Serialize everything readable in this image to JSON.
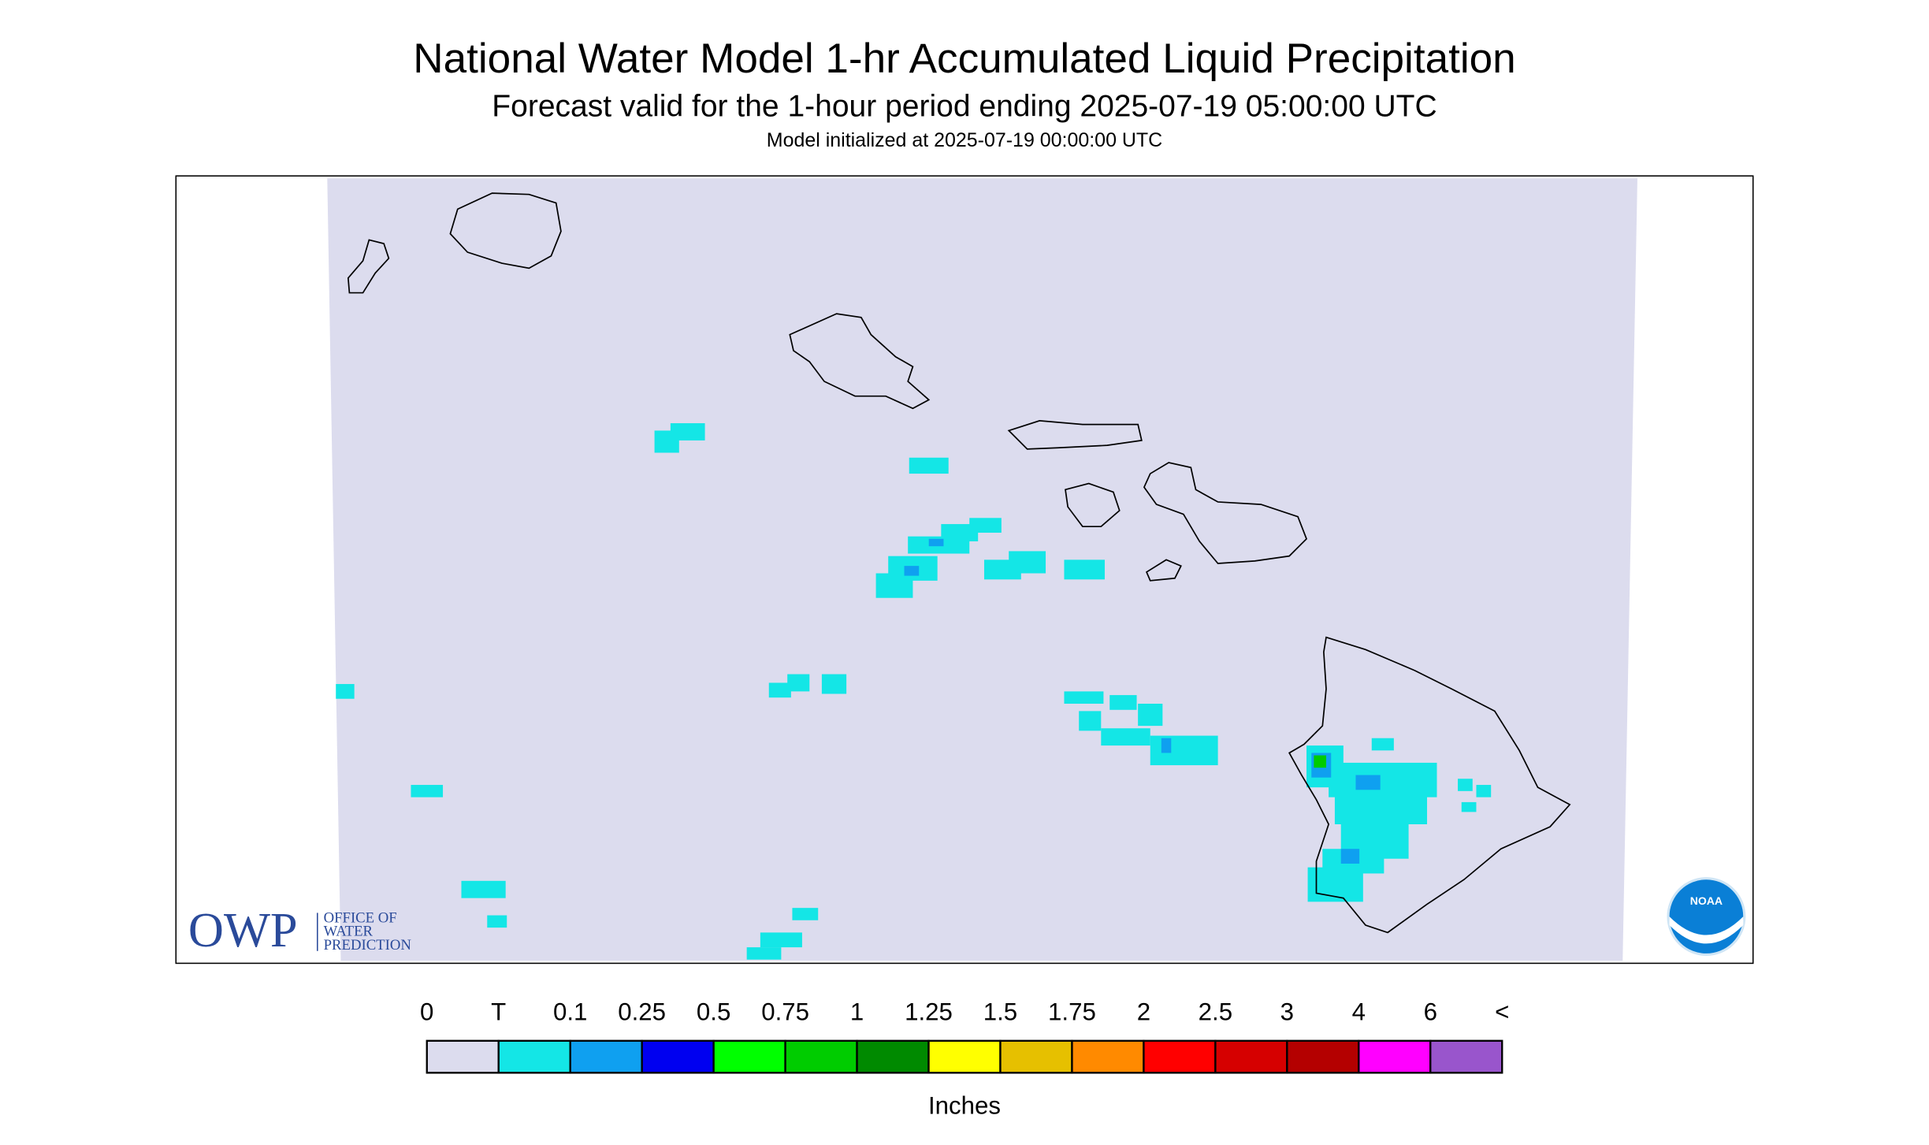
{
  "header": {
    "title": "National Water Model 1-hr Accumulated Liquid Precipitation",
    "subtitle": "Forecast valid for the 1-hour period ending 2025-07-19 05:00:00 UTC",
    "note": "Model initialized at 2025-07-19 00:00:00 UTC"
  },
  "legend": {
    "labels": [
      "0",
      "T",
      "0.1",
      "0.25",
      "0.5",
      "0.75",
      "1",
      "1.25",
      "1.5",
      "1.75",
      "2",
      "2.5",
      "3",
      "4",
      "6",
      "<"
    ],
    "colors": [
      "#dcdcee",
      "#14e6e6",
      "#0fa0f0",
      "#0000f0",
      "#00ff00",
      "#00cc00",
      "#008a00",
      "#ffff00",
      "#e6c000",
      "#ff8a00",
      "#ff0000",
      "#d60000",
      "#b40000",
      "#ff00ff",
      "#9955cc"
    ],
    "unit": "Inches"
  },
  "logos": {
    "owp": "OWP",
    "owp_lines": [
      "OFFICE OF",
      "WATER",
      "PREDICTION"
    ],
    "noaa": "NOAA"
  }
}
